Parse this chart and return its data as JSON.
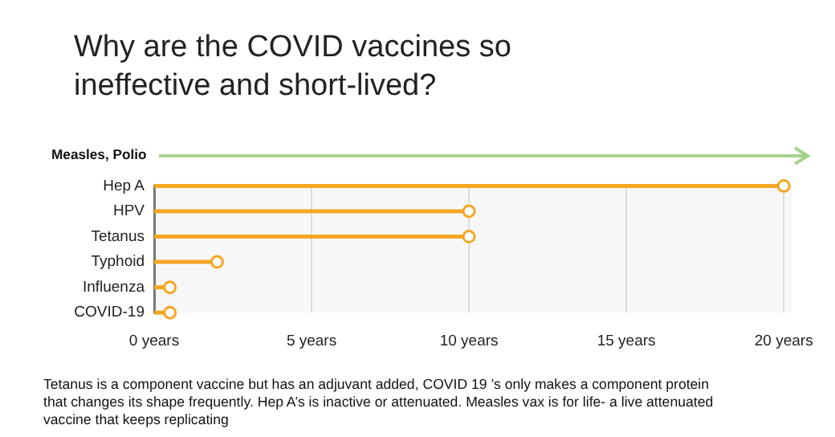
{
  "chart_data": {
    "type": "lollipop",
    "orientation": "horizontal",
    "title": "Why are the COVID vaccines so ineffective and short-lived?",
    "categories": [
      "Hep A",
      "HPV",
      "Tetanus",
      "Typhoid",
      "Influenza",
      "COVID-19"
    ],
    "values": [
      20,
      10,
      10,
      2,
      0.5,
      0.5
    ],
    "color": "#f5a623",
    "marker": "circle",
    "xlim": [
      0,
      20.25
    ],
    "xticks": [
      {
        "value": 0,
        "label": "0 years"
      },
      {
        "value": 5,
        "label": "5 years"
      },
      {
        "value": 10,
        "label": "10 years"
      },
      {
        "value": 15,
        "label": "15 years"
      },
      {
        "value": 20,
        "label": "20 years"
      }
    ],
    "grid": "x",
    "annotations": [
      "Measles, Polio",
      "Tetanus is a component vaccine but has an adjuvant added, COVID 19 ’s only makes a  component protein that changes its shape frequently.  Hep A’s is inactive or attenuated. Measles vax is for life- a live attenuated vaccine that keeps replicating"
    ]
  }
}
